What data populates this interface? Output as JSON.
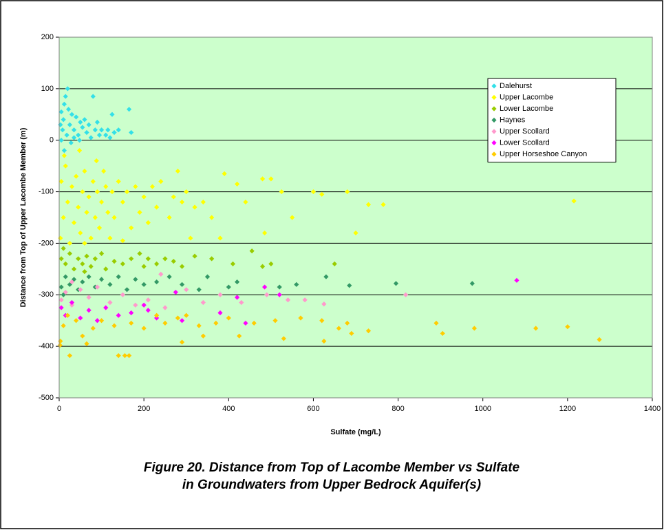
{
  "chart_data": {
    "type": "scatter",
    "x_label": "Sulfate (mg/L)",
    "y_label": "Distance from Top of Upper Lacombe Member (m)",
    "caption": [
      "Figure 20. Distance from Top of Lacombe Member vs Sulfate",
      "in Groundwaters from Upper Bedrock Aquifer(s)"
    ],
    "xlim": [
      0,
      1400
    ],
    "xticks": [
      0,
      200,
      400,
      600,
      800,
      1000,
      1200,
      1400
    ],
    "ylim": [
      -500,
      200
    ],
    "yticks": [
      -500,
      -400,
      -300,
      -200,
      -100,
      0,
      100,
      200
    ],
    "grid": true,
    "legend": "upper right",
    "series": [
      {
        "name": "Dalehurst",
        "color": "#33e0e8",
        "x": [
          5,
          10,
          12,
          15,
          20,
          22,
          25,
          8,
          18,
          30,
          35,
          40,
          45,
          50,
          55,
          60,
          65,
          70,
          80,
          85,
          90,
          100,
          110,
          115,
          120,
          125,
          130,
          140,
          165,
          170,
          5,
          28,
          35,
          75,
          95,
          3,
          12,
          48
        ],
        "values": [
          55,
          40,
          70,
          85,
          100,
          60,
          30,
          20,
          10,
          50,
          20,
          45,
          10,
          35,
          25,
          40,
          15,
          30,
          85,
          20,
          35,
          20,
          10,
          20,
          5,
          50,
          15,
          20,
          60,
          15,
          0,
          -5,
          5,
          5,
          10,
          30,
          -20,
          0
        ]
      },
      {
        "name": "Upper Lacombe",
        "color": "#ffff00",
        "x": [
          5,
          10,
          15,
          20,
          25,
          30,
          35,
          40,
          45,
          50,
          55,
          60,
          65,
          70,
          75,
          80,
          85,
          90,
          95,
          100,
          105,
          110,
          115,
          120,
          125,
          130,
          140,
          150,
          160,
          170,
          180,
          190,
          200,
          210,
          220,
          230,
          240,
          260,
          270,
          280,
          290,
          300,
          310,
          320,
          340,
          360,
          380,
          390,
          420,
          440,
          480,
          485,
          500,
          525,
          550,
          600,
          620,
          680,
          730,
          765,
          700,
          1215,
          12,
          3,
          60,
          150,
          48,
          88
        ],
        "values": [
          -80,
          -150,
          -50,
          -120,
          -200,
          -90,
          -160,
          -70,
          -130,
          -180,
          -100,
          -60,
          -140,
          -110,
          -190,
          -80,
          -150,
          -100,
          -170,
          -120,
          -60,
          -90,
          -140,
          -190,
          -100,
          -150,
          -80,
          -120,
          -100,
          -170,
          -90,
          -140,
          -110,
          -160,
          -90,
          -130,
          -80,
          -150,
          -110,
          -60,
          -120,
          -100,
          -190,
          -130,
          -120,
          -150,
          -190,
          -65,
          -85,
          -120,
          -75,
          -180,
          -75,
          -100,
          -150,
          -100,
          -105,
          -100,
          -125,
          -125,
          -180,
          -118,
          -30,
          -190,
          -200,
          -195,
          -20,
          -40
        ]
      },
      {
        "name": "Lower Lacombe",
        "color": "#99cc00",
        "x": [
          5,
          15,
          25,
          35,
          45,
          55,
          65,
          75,
          85,
          100,
          110,
          130,
          150,
          170,
          190,
          200,
          210,
          230,
          250,
          270,
          290,
          320,
          360,
          410,
          455,
          480,
          500,
          650,
          10,
          60
        ],
        "values": [
          -230,
          -240,
          -220,
          -250,
          -230,
          -240,
          -225,
          -245,
          -230,
          -220,
          -250,
          -235,
          -240,
          -230,
          -220,
          -245,
          -230,
          -240,
          -230,
          -235,
          -245,
          -225,
          -230,
          -240,
          -215,
          -245,
          -240,
          -240,
          -210,
          -255
        ]
      },
      {
        "name": "Haynes",
        "color": "#339966",
        "x": [
          5,
          15,
          25,
          35,
          45,
          55,
          70,
          85,
          100,
          120,
          140,
          160,
          180,
          200,
          230,
          260,
          290,
          330,
          350,
          400,
          420,
          520,
          560,
          630,
          685,
          795,
          975,
          10
        ],
        "values": [
          -285,
          -265,
          -280,
          -270,
          -290,
          -275,
          -265,
          -285,
          -270,
          -280,
          -265,
          -290,
          -270,
          -280,
          -275,
          -265,
          -280,
          -290,
          -265,
          -285,
          -275,
          -285,
          -280,
          -265,
          -282,
          -278,
          -278,
          -300
        ]
      },
      {
        "name": "Upper Scollard",
        "color": "#ff99cc",
        "x": [
          5,
          15,
          30,
          50,
          70,
          90,
          120,
          150,
          180,
          210,
          250,
          300,
          340,
          380,
          430,
          490,
          540,
          580,
          625,
          818,
          30,
          240
        ],
        "values": [
          -310,
          -295,
          -320,
          -290,
          -305,
          -285,
          -315,
          -300,
          -320,
          -310,
          -325,
          -290,
          -315,
          -300,
          -315,
          -300,
          -310,
          -310,
          -318,
          -300,
          -275,
          -260
        ]
      },
      {
        "name": "Lower Scollard",
        "color": "#ff00ff",
        "x": [
          5,
          15,
          30,
          50,
          70,
          90,
          110,
          140,
          170,
          200,
          210,
          230,
          275,
          290,
          380,
          420,
          440,
          485,
          520,
          1080
        ],
        "values": [
          -325,
          -340,
          -315,
          -345,
          -330,
          -350,
          -325,
          -340,
          -335,
          -320,
          -330,
          -345,
          -295,
          -350,
          -335,
          -305,
          -355,
          -285,
          -300,
          -272
        ]
      },
      {
        "name": "Upper Horseshoe Canyon",
        "color": "#ffcc00",
        "x": [
          3,
          10,
          20,
          25,
          40,
          55,
          65,
          80,
          100,
          130,
          140,
          155,
          165,
          170,
          200,
          230,
          250,
          280,
          290,
          300,
          330,
          340,
          370,
          400,
          425,
          460,
          510,
          530,
          570,
          620,
          625,
          660,
          680,
          690,
          730,
          890,
          905,
          980,
          1125,
          1200,
          1275,
          2
        ],
        "values": [
          -390,
          -360,
          -340,
          -418,
          -350,
          -380,
          -395,
          -365,
          -350,
          -360,
          -418,
          -418,
          -418,
          -355,
          -365,
          -340,
          -355,
          -345,
          -392,
          -340,
          -360,
          -380,
          -355,
          -345,
          -380,
          -355,
          -350,
          -385,
          -345,
          -350,
          -390,
          -365,
          -355,
          -375,
          -370,
          -355,
          -375,
          -365,
          -365,
          -362,
          -387,
          -398
        ]
      }
    ]
  }
}
